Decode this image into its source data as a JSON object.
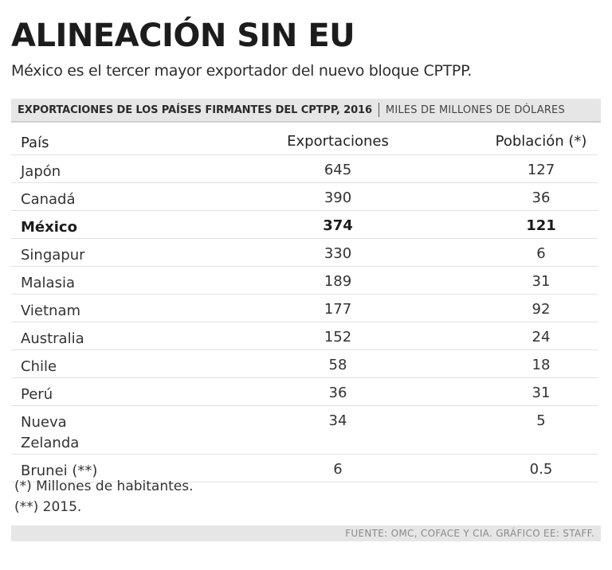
{
  "title": "ALINEACIÓN SIN EU",
  "subtitle": "México es el tercer mayor exportador del nuevo bloque CPTPP.",
  "table_header": {
    "main": "EXPORTACIONES DE LOS PAÍSES FIRMANTES DEL CPTPP, 2016",
    "unit": "MILES DE MILLONES DE DÓLARES"
  },
  "chart_data": {
    "type": "table",
    "title": "EXPORTACIONES DE LOS PAÍSES FIRMANTES DEL CPTPP, 2016",
    "columns": [
      "País",
      "Exportaciones",
      "Población (*)"
    ],
    "rows": [
      {
        "country": "Japón",
        "exports": "645",
        "population": "127"
      },
      {
        "country": "Canadá",
        "exports": "390",
        "population": "36"
      },
      {
        "country": "México",
        "exports": "374",
        "population": "121",
        "highlight": true
      },
      {
        "country": "Singapur",
        "exports": "330",
        "population": "6"
      },
      {
        "country": "Malasia",
        "exports": "189",
        "population": "31"
      },
      {
        "country": "Vietnam",
        "exports": "177",
        "population": "92"
      },
      {
        "country": "Australia",
        "exports": "152",
        "population": "24"
      },
      {
        "country": "Chile",
        "exports": "58",
        "population": "18"
      },
      {
        "country": "Perú",
        "exports": "36",
        "population": "31"
      },
      {
        "country": "Nueva Zelanda",
        "exports": "34",
        "population": "5"
      },
      {
        "country": "Brunei (**)",
        "exports": "6",
        "population": "0.5"
      }
    ]
  },
  "notes": [
    "(*) Millones de habitantes.",
    "(**) 2015."
  ],
  "source": "FUENTE: OMC, COFACE Y CIA. GRÁFICO EE: STAFF."
}
